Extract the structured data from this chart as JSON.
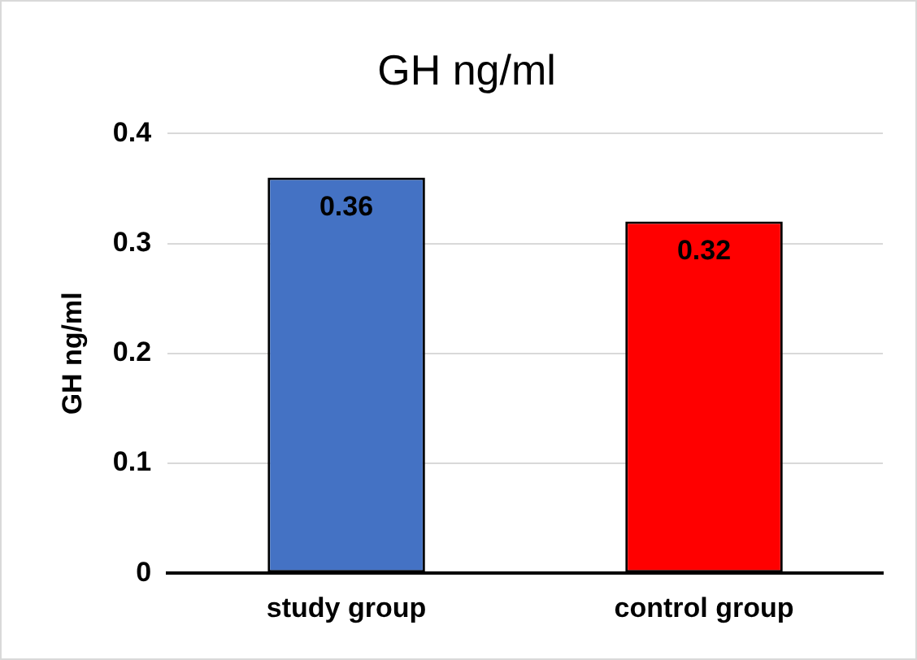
{
  "chart_data": {
    "type": "bar",
    "title": "GH ng/ml",
    "ylabel": "GH ng/ml",
    "categories": [
      "study group",
      "control group"
    ],
    "values": [
      0.36,
      0.32
    ],
    "colors": [
      "#4472c4",
      "#ff0000"
    ],
    "ylim": [
      0,
      0.4
    ],
    "yticks": [
      0,
      0.1,
      0.2,
      0.3,
      0.4
    ],
    "grid": "y",
    "legend": false,
    "data_labels": true
  }
}
